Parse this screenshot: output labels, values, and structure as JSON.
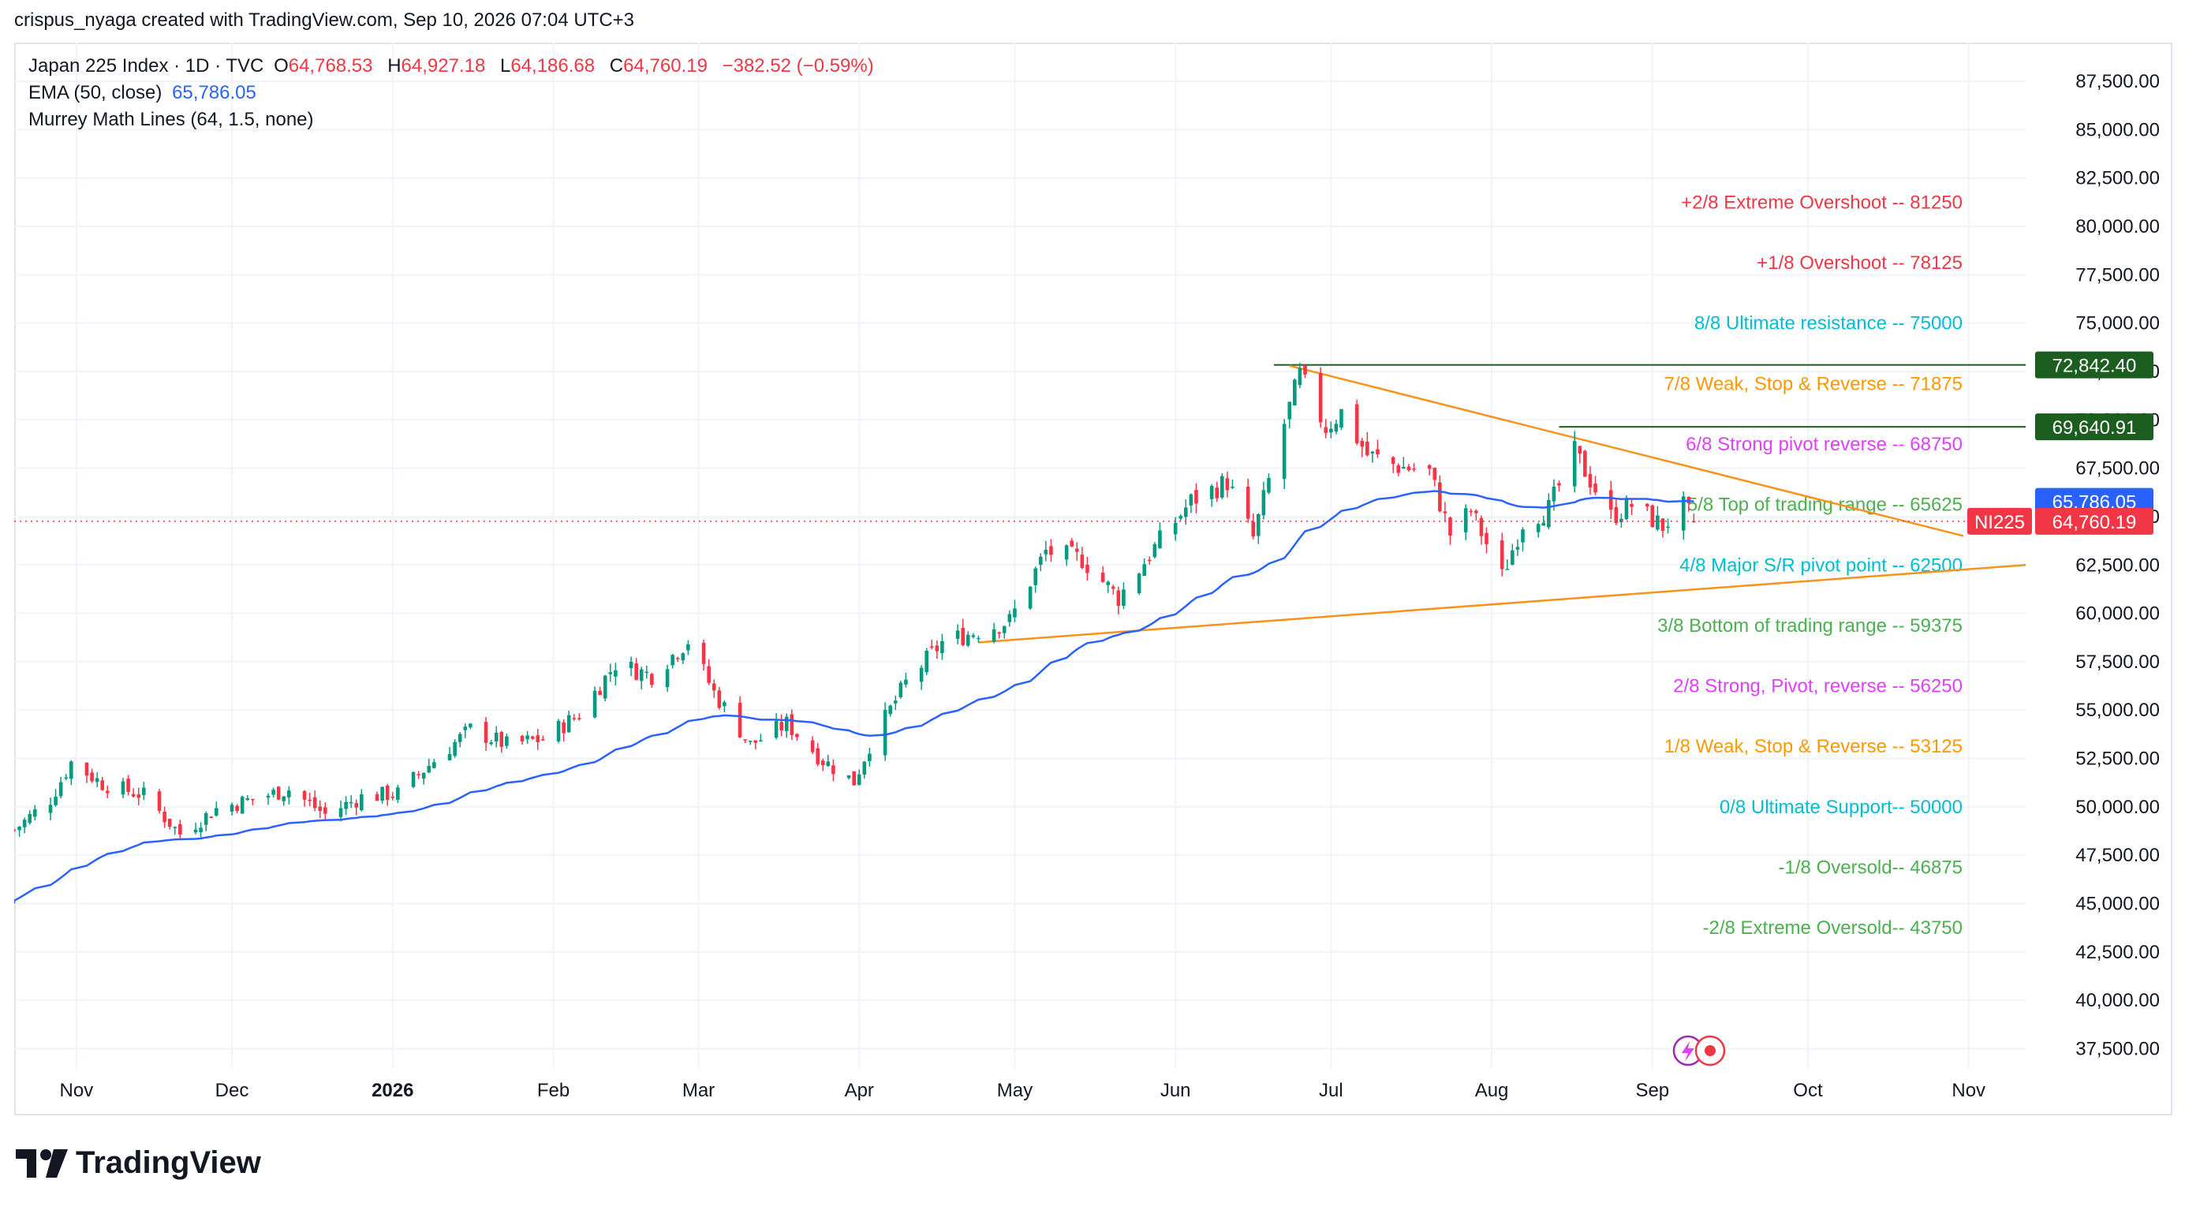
{
  "attribution": "crispus_nyaga created with TradingView.com, Sep 10, 2026 07:04 UTC+3",
  "legend": {
    "symbol": "Japan 225 Index · 1D · TVC",
    "o_label": "O",
    "o_value": "64,768.53",
    "h_label": "H",
    "h_value": "64,927.18",
    "l_label": "L",
    "l_value": "64,186.68",
    "c_label": "C",
    "c_value": "64,760.19",
    "change": "−382.52 (−0.59%)",
    "ema_label": "EMA (50, close)",
    "ema_value": "65,786.05",
    "murrey_label": "Murrey Math Lines (64, 1.5, none)"
  },
  "logo_text": "TradingView",
  "colors": {
    "up": "#089981",
    "down": "#f23645",
    "ema": "#2962ff",
    "trend": "#f7931a",
    "hline": "#1b5e20",
    "grid": "#f0f3fa",
    "axis_text": "#131722"
  },
  "chart_data": {
    "type": "candlestick",
    "symbol": "NI225",
    "y_range": [
      36500,
      89500
    ],
    "y_ticks": [
      37500,
      40000,
      42500,
      45000,
      47500,
      50000,
      52500,
      55000,
      57500,
      60000,
      62500,
      65000,
      67500,
      70000,
      72500,
      75000,
      77500,
      80000,
      82500,
      85000,
      87500
    ],
    "y_tick_labels": [
      "37,500.00",
      "40,000.00",
      "42,500.00",
      "45,000.00",
      "47,500.00",
      "50,000.00",
      "52,500.00",
      "55,000.00",
      "57,500.00",
      "60,000.00",
      "62,500.00",
      "65,000.00",
      "67,500.00",
      "70,000.00",
      "72,500.00",
      "75,000.00",
      "77,500.00",
      "80,000.00",
      "82,500.00",
      "85,000.00",
      "87,500.00"
    ],
    "x_range": [
      "2025-10-20",
      "2026-11-12"
    ],
    "x_ticks": [
      {
        "date": "2025-11-01",
        "label": "Nov",
        "bold": false
      },
      {
        "date": "2025-12-01",
        "label": "Dec",
        "bold": false
      },
      {
        "date": "2026-01-01",
        "label": "2026",
        "bold": true
      },
      {
        "date": "2026-02-01",
        "label": "Feb",
        "bold": false
      },
      {
        "date": "2026-03-01",
        "label": "Mar",
        "bold": false
      },
      {
        "date": "2026-04-01",
        "label": "Apr",
        "bold": false
      },
      {
        "date": "2026-05-01",
        "label": "May",
        "bold": false
      },
      {
        "date": "2026-06-01",
        "label": "Jun",
        "bold": false
      },
      {
        "date": "2026-07-01",
        "label": "Jul",
        "bold": false
      },
      {
        "date": "2026-08-01",
        "label": "Aug",
        "bold": false
      },
      {
        "date": "2026-09-01",
        "label": "Sep",
        "bold": false
      },
      {
        "date": "2026-10-01",
        "label": "Oct",
        "bold": false
      },
      {
        "date": "2026-11-01",
        "label": "Nov",
        "bold": false
      }
    ],
    "close_anchors": [
      [
        "2025-10-20",
        48800
      ],
      [
        "2025-10-27",
        50400
      ],
      [
        "2025-10-31",
        52300
      ],
      [
        "2025-11-06",
        51200
      ],
      [
        "2025-11-14",
        50600
      ],
      [
        "2025-11-21",
        48600
      ],
      [
        "2025-11-28",
        49900
      ],
      [
        "2025-12-05",
        50400
      ],
      [
        "2025-12-12",
        50900
      ],
      [
        "2025-12-19",
        49600
      ],
      [
        "2025-12-26",
        50500
      ],
      [
        "2026-01-02",
        50700
      ],
      [
        "2026-01-09",
        52400
      ],
      [
        "2026-01-16",
        54000
      ],
      [
        "2026-01-23",
        53200
      ],
      [
        "2026-01-30",
        53500
      ],
      [
        "2026-02-06",
        54800
      ],
      [
        "2026-02-13",
        57400
      ],
      [
        "2026-02-20",
        56800
      ],
      [
        "2026-02-27",
        58600
      ],
      [
        "2026-03-04",
        55900
      ],
      [
        "2026-03-11",
        53200
      ],
      [
        "2026-03-18",
        54300
      ],
      [
        "2026-03-25",
        52400
      ],
      [
        "2026-03-31",
        51300
      ],
      [
        "2026-04-03",
        53200
      ],
      [
        "2026-04-10",
        56400
      ],
      [
        "2026-04-17",
        58500
      ],
      [
        "2026-04-24",
        59100
      ],
      [
        "2026-04-30",
        59600
      ],
      [
        "2026-05-07",
        63200
      ],
      [
        "2026-05-14",
        62800
      ],
      [
        "2026-05-21",
        60800
      ],
      [
        "2026-05-28",
        63400
      ],
      [
        "2026-06-04",
        65800
      ],
      [
        "2026-06-11",
        66800
      ],
      [
        "2026-06-16",
        63900
      ],
      [
        "2026-06-22",
        69800
      ],
      [
        "2026-06-25",
        72300
      ],
      [
        "2026-06-30",
        69600
      ],
      [
        "2026-07-03",
        70400
      ],
      [
        "2026-07-08",
        68200
      ],
      [
        "2026-07-14",
        67600
      ],
      [
        "2026-07-20",
        67300
      ],
      [
        "2026-07-24",
        64100
      ],
      [
        "2026-07-28",
        65300
      ],
      [
        "2026-08-03",
        61900
      ],
      [
        "2026-08-07",
        64700
      ],
      [
        "2026-08-12",
        65400
      ],
      [
        "2026-08-17",
        68300
      ],
      [
        "2026-08-20",
        66900
      ],
      [
        "2026-08-24",
        65000
      ],
      [
        "2026-08-28",
        65600
      ],
      [
        "2026-09-03",
        64500
      ],
      [
        "2026-09-07",
        65500
      ],
      [
        "2026-09-09",
        64760
      ]
    ],
    "ema_period": 50,
    "ema_start_value": 45000,
    "ema_last_value": 65786.05,
    "last_close": 64760.19,
    "murrey_lines": [
      {
        "label": "+2/8 Extreme Overshoot --  81250",
        "value": 81250,
        "color": "#f23645"
      },
      {
        "label": "+1/8 Overshoot --  78125",
        "value": 78125,
        "color": "#f23645"
      },
      {
        "label": "8/8 Ultimate resistance --  75000",
        "value": 75000,
        "color": "#00bcd4"
      },
      {
        "label": "7/8 Weak, Stop & Reverse --  71875",
        "value": 71875,
        "color": "#ff9800"
      },
      {
        "label": "6/8 Strong pivot reverse --  68750",
        "value": 68750,
        "color": "#e040fb"
      },
      {
        "label": "5/8 Top of trading range --  65625",
        "value": 65625,
        "color": "#4caf50"
      },
      {
        "label": "4/8 Major S/R pivot point --  62500",
        "value": 62500,
        "color": "#00bcd4"
      },
      {
        "label": "3/8 Bottom of trading range --  59375",
        "value": 59375,
        "color": "#4caf50"
      },
      {
        "label": "2/8 Strong, Pivot, reverse --  56250",
        "value": 56250,
        "color": "#e040fb"
      },
      {
        "label": "1/8 Weak, Stop & Reverse --  53125",
        "value": 53125,
        "color": "#ff9800"
      },
      {
        "label": "0/8 Ultimate Support--  50000",
        "value": 50000,
        "color": "#00bcd4"
      },
      {
        "label": "-1/8 Oversold--  46875",
        "value": 46875,
        "color": "#4caf50"
      },
      {
        "label": "-2/8 Extreme Oversold--  43750",
        "value": 43750,
        "color": "#4caf50"
      }
    ],
    "horizontal_lines": [
      {
        "value": 72842.4,
        "label": "72,842.40",
        "from": "2026-06-20"
      },
      {
        "value": 69640.91,
        "label": "69,640.91",
        "from": "2026-08-14"
      }
    ],
    "trend_lines": [
      {
        "from": [
          "2026-06-23",
          72800
        ],
        "to": [
          "2026-10-31",
          64000
        ]
      },
      {
        "from": [
          "2026-04-24",
          58500
        ],
        "to": [
          "2026-11-12",
          62500
        ]
      }
    ],
    "price_labels": [
      {
        "text": "65,786.05",
        "value": 65786.05,
        "bg": "#2962ff"
      },
      {
        "text": "64,760.19",
        "value": 64760.19,
        "bg": "#f23645",
        "tag": "NI225"
      }
    ]
  }
}
